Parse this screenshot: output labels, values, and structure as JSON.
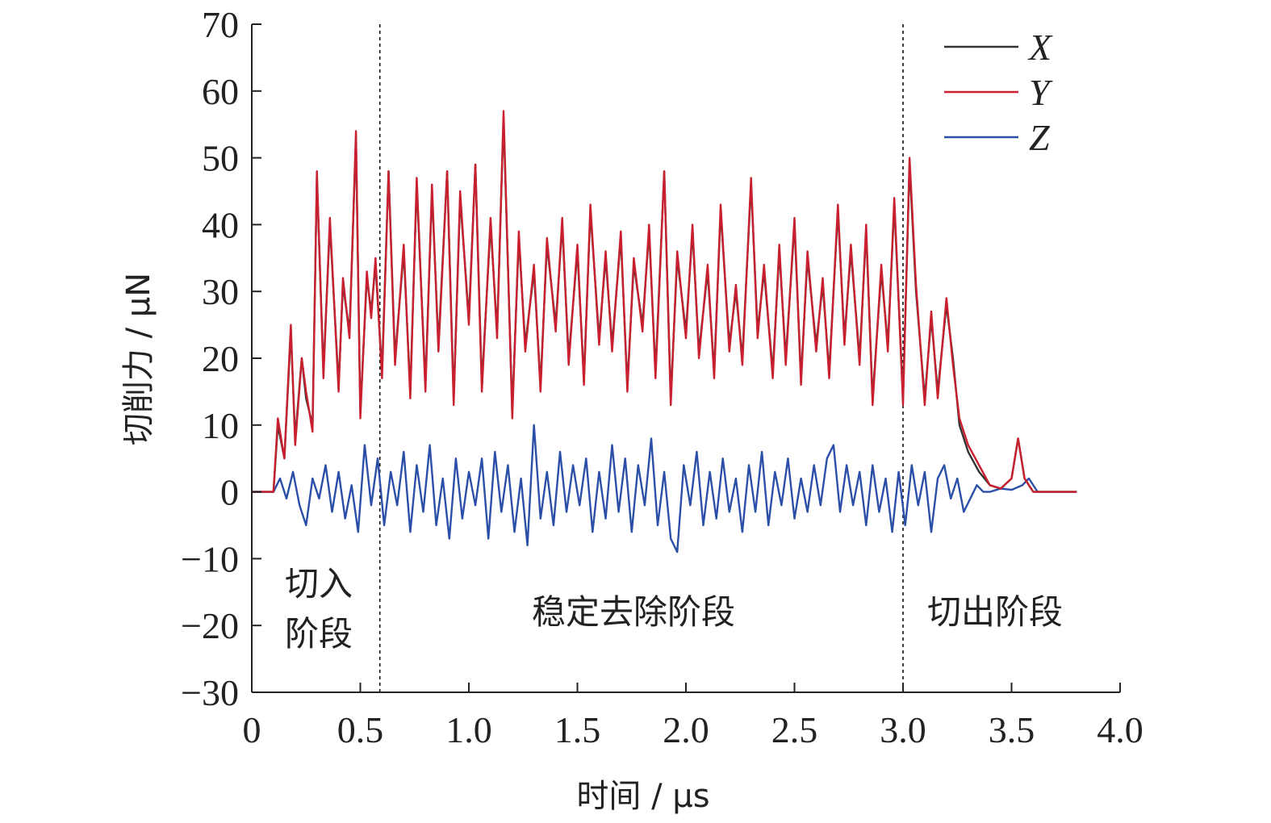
{
  "chart_data": {
    "type": "line",
    "xlabel": "时间 / μs",
    "ylabel": "切削力 / μN",
    "xlim": [
      0,
      4.0
    ],
    "ylim": [
      -30,
      70
    ],
    "xticks": [
      "0",
      "0.5",
      "1.0",
      "1.5",
      "2.0",
      "2.5",
      "3.0",
      "3.5",
      "4.0"
    ],
    "yticks": [
      "−30",
      "−20",
      "−10",
      "0",
      "10",
      "20",
      "30",
      "40",
      "50",
      "60",
      "70"
    ],
    "grid": false,
    "legend_position": "top-right",
    "phase_lines": [
      0.59,
      3.0
    ],
    "phases": [
      {
        "label_line1": "切入",
        "label_line2": "阶段"
      },
      {
        "label": "稳定去除阶段"
      },
      {
        "label": "切出阶段"
      }
    ],
    "series": [
      {
        "name": "X",
        "color": "#333333",
        "x": [
          0,
          0.1,
          0.12,
          0.15,
          0.18,
          0.2,
          0.23,
          0.25,
          0.28,
          0.3,
          0.33,
          0.36,
          0.4,
          0.42,
          0.45,
          0.48,
          0.5,
          0.53,
          0.55,
          0.57,
          0.6,
          0.63,
          0.66,
          0.7,
          0.73,
          0.76,
          0.8,
          0.83,
          0.86,
          0.9,
          0.93,
          0.96,
          1.0,
          1.03,
          1.06,
          1.1,
          1.13,
          1.16,
          1.2,
          1.23,
          1.26,
          1.3,
          1.33,
          1.36,
          1.4,
          1.43,
          1.46,
          1.5,
          1.53,
          1.56,
          1.6,
          1.63,
          1.66,
          1.7,
          1.73,
          1.76,
          1.8,
          1.83,
          1.86,
          1.9,
          1.93,
          1.96,
          2.0,
          2.03,
          2.06,
          2.1,
          2.13,
          2.16,
          2.2,
          2.23,
          2.26,
          2.3,
          2.33,
          2.36,
          2.4,
          2.43,
          2.46,
          2.5,
          2.53,
          2.56,
          2.6,
          2.63,
          2.66,
          2.7,
          2.73,
          2.76,
          2.8,
          2.83,
          2.86,
          2.9,
          2.93,
          2.96,
          3.0,
          3.03,
          3.06,
          3.1,
          3.13,
          3.16,
          3.2,
          3.23,
          3.26,
          3.3,
          3.35,
          3.4,
          3.45,
          3.5,
          3.53,
          3.56,
          3.6,
          3.7,
          3.8
        ],
        "values": [
          0,
          0,
          10,
          5,
          24,
          8,
          20,
          14,
          10,
          47,
          18,
          40,
          16,
          31,
          24,
          53,
          12,
          32,
          27,
          34,
          18,
          48,
          20,
          36,
          15,
          46,
          16,
          45,
          22,
          48,
          14,
          44,
          26,
          49,
          16,
          40,
          24,
          56,
          12,
          38,
          22,
          33,
          16,
          37,
          25,
          40,
          20,
          36,
          17,
          42,
          23,
          35,
          22,
          38,
          16,
          34,
          25,
          39,
          18,
          48,
          14,
          35,
          24,
          39,
          21,
          33,
          18,
          42,
          22,
          30,
          20,
          46,
          24,
          33,
          18,
          36,
          20,
          40,
          17,
          35,
          22,
          31,
          18,
          42,
          23,
          36,
          20,
          39,
          14,
          33,
          22,
          43,
          14,
          49,
          30,
          14,
          26,
          15,
          28,
          20,
          10,
          6,
          3,
          1,
          0.5,
          2,
          8,
          2,
          0,
          0,
          0
        ]
      },
      {
        "name": "Y",
        "color": "#c8202f",
        "x": [
          0,
          0.1,
          0.12,
          0.15,
          0.18,
          0.2,
          0.23,
          0.25,
          0.28,
          0.3,
          0.33,
          0.36,
          0.4,
          0.42,
          0.45,
          0.48,
          0.5,
          0.53,
          0.55,
          0.57,
          0.6,
          0.63,
          0.66,
          0.7,
          0.73,
          0.76,
          0.8,
          0.83,
          0.86,
          0.9,
          0.93,
          0.96,
          1.0,
          1.03,
          1.06,
          1.1,
          1.13,
          1.16,
          1.2,
          1.23,
          1.26,
          1.3,
          1.33,
          1.36,
          1.4,
          1.43,
          1.46,
          1.5,
          1.53,
          1.56,
          1.6,
          1.63,
          1.66,
          1.7,
          1.73,
          1.76,
          1.8,
          1.83,
          1.86,
          1.9,
          1.93,
          1.96,
          2.0,
          2.03,
          2.06,
          2.1,
          2.13,
          2.16,
          2.2,
          2.23,
          2.26,
          2.3,
          2.33,
          2.36,
          2.4,
          2.43,
          2.46,
          2.5,
          2.53,
          2.56,
          2.6,
          2.63,
          2.66,
          2.7,
          2.73,
          2.76,
          2.8,
          2.83,
          2.86,
          2.9,
          2.93,
          2.96,
          3.0,
          3.03,
          3.06,
          3.1,
          3.13,
          3.16,
          3.2,
          3.23,
          3.26,
          3.3,
          3.35,
          3.4,
          3.45,
          3.5,
          3.53,
          3.56,
          3.6,
          3.7,
          3.8
        ],
        "values": [
          0,
          0,
          11,
          5,
          25,
          7,
          20,
          15,
          9,
          48,
          17,
          41,
          15,
          32,
          23,
          54,
          11,
          33,
          26,
          35,
          17,
          48,
          19,
          37,
          14,
          47,
          15,
          46,
          21,
          48,
          13,
          45,
          25,
          49,
          15,
          41,
          23,
          57,
          11,
          39,
          21,
          34,
          15,
          38,
          24,
          41,
          19,
          37,
          16,
          43,
          22,
          36,
          21,
          39,
          15,
          35,
          24,
          40,
          17,
          48,
          13,
          36,
          23,
          40,
          20,
          34,
          17,
          43,
          21,
          31,
          19,
          47,
          23,
          34,
          17,
          37,
          19,
          41,
          16,
          36,
          21,
          32,
          17,
          43,
          22,
          37,
          19,
          40,
          13,
          34,
          21,
          44,
          13,
          50,
          31,
          13,
          27,
          14,
          29,
          19,
          11,
          7,
          4,
          1,
          0.5,
          2,
          8,
          2,
          0,
          0,
          0
        ]
      },
      {
        "name": "Z",
        "color": "#2b4fa8",
        "x": [
          0,
          0.1,
          0.13,
          0.16,
          0.19,
          0.22,
          0.25,
          0.28,
          0.31,
          0.34,
          0.37,
          0.4,
          0.43,
          0.46,
          0.49,
          0.52,
          0.55,
          0.58,
          0.61,
          0.64,
          0.67,
          0.7,
          0.73,
          0.76,
          0.79,
          0.82,
          0.85,
          0.88,
          0.91,
          0.94,
          0.97,
          1.0,
          1.03,
          1.06,
          1.09,
          1.12,
          1.15,
          1.18,
          1.21,
          1.24,
          1.27,
          1.3,
          1.33,
          1.36,
          1.39,
          1.42,
          1.45,
          1.48,
          1.51,
          1.54,
          1.57,
          1.6,
          1.63,
          1.66,
          1.69,
          1.72,
          1.75,
          1.78,
          1.81,
          1.84,
          1.87,
          1.9,
          1.93,
          1.96,
          1.99,
          2.02,
          2.05,
          2.08,
          2.11,
          2.14,
          2.17,
          2.2,
          2.23,
          2.26,
          2.29,
          2.32,
          2.35,
          2.38,
          2.41,
          2.44,
          2.47,
          2.5,
          2.53,
          2.56,
          2.59,
          2.62,
          2.65,
          2.68,
          2.71,
          2.74,
          2.77,
          2.8,
          2.83,
          2.86,
          2.89,
          2.92,
          2.95,
          2.98,
          3.01,
          3.04,
          3.07,
          3.1,
          3.13,
          3.16,
          3.19,
          3.22,
          3.25,
          3.28,
          3.31,
          3.34,
          3.37,
          3.4,
          3.45,
          3.5,
          3.55,
          3.58,
          3.62,
          3.7,
          3.8
        ],
        "values": [
          0,
          0,
          2,
          -1,
          3,
          -2,
          -5,
          2,
          -1,
          4,
          -3,
          3,
          -4,
          1,
          -6,
          7,
          -2,
          5,
          -5,
          3,
          -2,
          6,
          -6,
          4,
          -3,
          7,
          -5,
          2,
          -7,
          5,
          -4,
          3,
          -2,
          5,
          -7,
          6,
          -3,
          4,
          -6,
          2,
          -8,
          10,
          -4,
          3,
          -5,
          6,
          -3,
          4,
          -2,
          5,
          -6,
          3,
          -4,
          7,
          -3,
          5,
          -6,
          4,
          -2,
          8,
          -5,
          3,
          -7,
          -9,
          4,
          -2,
          6,
          -5,
          3,
          -4,
          5,
          -3,
          2,
          -6,
          4,
          -3,
          6,
          -5,
          3,
          -2,
          5,
          -4,
          2,
          -3,
          4,
          -2,
          5,
          7,
          -3,
          4,
          -2,
          3,
          -5,
          4,
          -3,
          2,
          -6,
          3,
          -5,
          4,
          -2,
          3,
          -6,
          2,
          4,
          -1,
          2,
          -3,
          -1,
          1,
          0,
          0,
          0.5,
          0.3,
          1,
          2,
          0,
          0,
          0
        ]
      }
    ]
  }
}
